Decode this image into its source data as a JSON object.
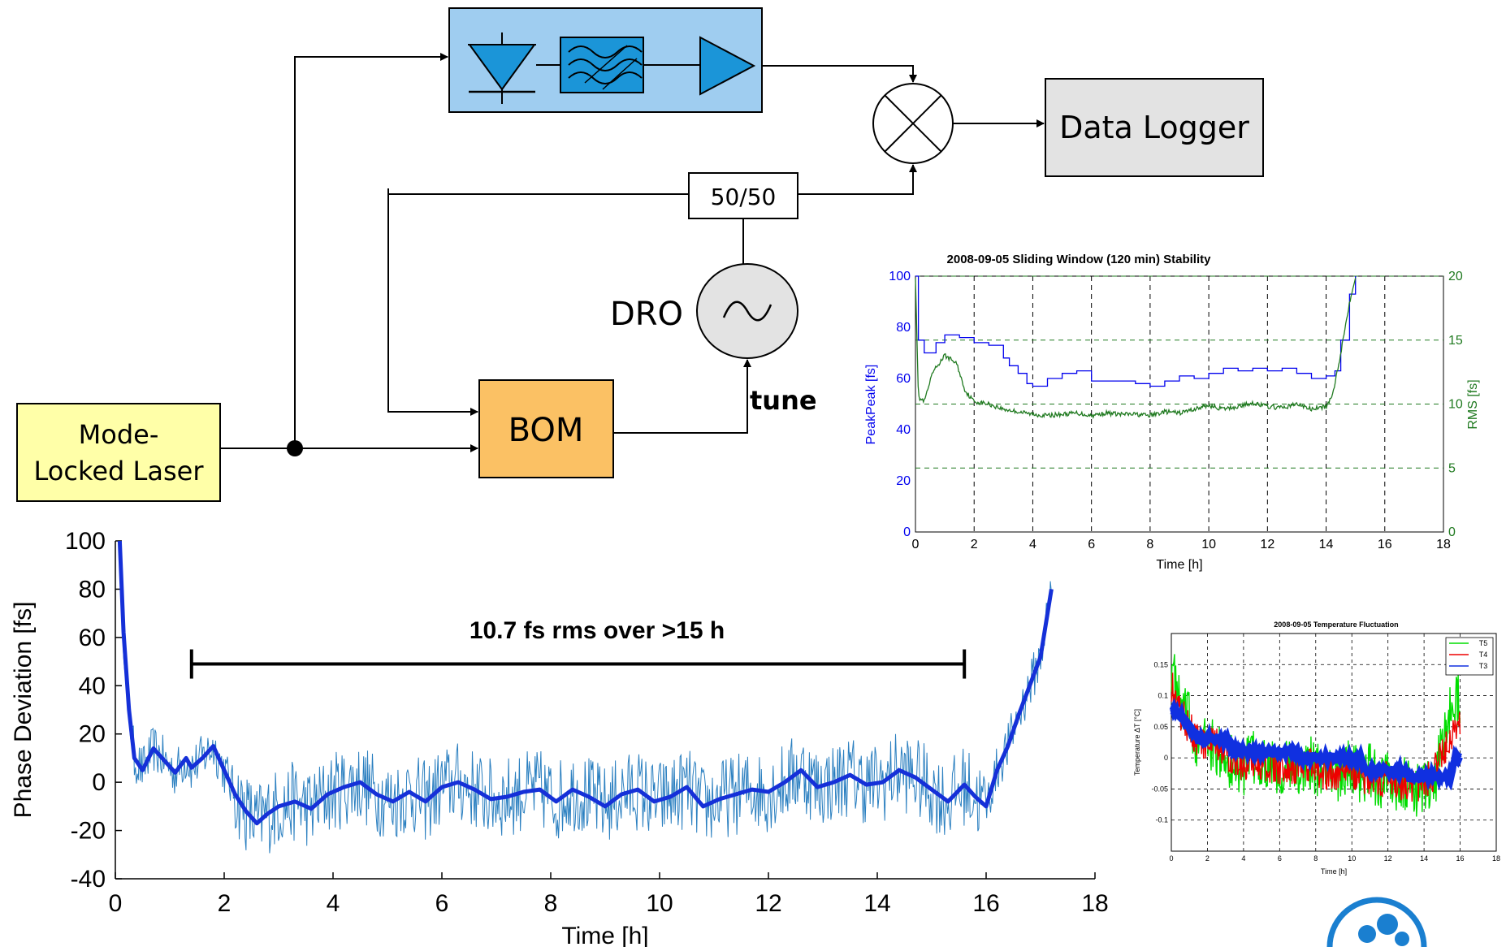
{
  "diagram": {
    "laser_label_1": "Mode-",
    "laser_label_2": "Locked Laser",
    "bom_label": "BOM",
    "splitter_label": "50/50",
    "dro_label": "DRO",
    "tune_label": "tune",
    "logger_label": "Data Logger"
  },
  "chart_data": [
    {
      "id": "main",
      "type": "line",
      "xlabel": "Time [h]",
      "ylabel": "Phase Deviation [fs]",
      "xlim": [
        0,
        18
      ],
      "ylim": [
        -40,
        100
      ],
      "xticks": [
        0,
        2,
        4,
        6,
        8,
        10,
        12,
        14,
        16,
        18
      ],
      "yticks": [
        -40,
        -20,
        0,
        20,
        40,
        60,
        80,
        100
      ],
      "annotation": "10.7 fs rms over >15 h",
      "annotation_range": [
        1.4,
        15.6
      ],
      "colors": {
        "raw": "#2a7fc0",
        "smooth": "#1530d8"
      },
      "series": [
        {
          "x": [
            0.08,
            0.15,
            0.25,
            0.35,
            0.5,
            0.7,
            0.9,
            1.1,
            1.3,
            1.4,
            1.6,
            1.8,
            2.0,
            2.2,
            2.4,
            2.6,
            2.8,
            3.0,
            3.3,
            3.6,
            3.9,
            4.2,
            4.5,
            4.8,
            5.1,
            5.4,
            5.7,
            6.0,
            6.3,
            6.6,
            6.9,
            7.2,
            7.5,
            7.8,
            8.1,
            8.4,
            8.7,
            9.0,
            9.3,
            9.6,
            9.9,
            10.2,
            10.5,
            10.8,
            11.1,
            11.4,
            11.7,
            12.0,
            12.3,
            12.6,
            12.9,
            13.2,
            13.5,
            13.8,
            14.1,
            14.4,
            14.7,
            15.0,
            15.3,
            15.6,
            15.8,
            16.0,
            16.2,
            16.4,
            16.6,
            16.8,
            17.0,
            17.2
          ],
          "y": [
            100,
            62,
            30,
            10,
            5,
            14,
            9,
            4,
            10,
            6,
            10,
            15,
            5,
            -5,
            -12,
            -17,
            -13,
            -10,
            -8,
            -11,
            -5,
            -2,
            0,
            -5,
            -8,
            -4,
            -8,
            -2,
            0,
            -3,
            -7,
            -6,
            -4,
            -3,
            -8,
            -3,
            -6,
            -10,
            -5,
            -3,
            -8,
            -6,
            -2,
            -10,
            -7,
            -5,
            -3,
            -4,
            0,
            5,
            -2,
            0,
            3,
            -1,
            0,
            5,
            2,
            -3,
            -8,
            -1,
            -6,
            -10,
            5,
            15,
            28,
            40,
            52,
            80
          ]
        }
      ]
    },
    {
      "id": "stability",
      "type": "line",
      "title": "2008-09-05 Sliding Window (120 min) Stability",
      "xlabel": "Time [h]",
      "ylabel": "PeakPeak [fs]",
      "ylabel2": "RMS [fs]",
      "xlim": [
        0,
        18
      ],
      "ylim": [
        0,
        100
      ],
      "ylim2": [
        0,
        20
      ],
      "xticks": [
        0,
        2,
        4,
        6,
        8,
        10,
        12,
        14,
        16,
        18
      ],
      "yticks": [
        0,
        20,
        40,
        60,
        80,
        100
      ],
      "yticks2": [
        0,
        5,
        10,
        15,
        20
      ],
      "grid": true,
      "series": [
        {
          "axis": "left",
          "color": "#0000ee",
          "x": [
            0.0,
            0.1,
            0.3,
            0.7,
            1.0,
            1.5,
            2.0,
            2.5,
            3.0,
            3.2,
            3.5,
            3.8,
            4.0,
            4.5,
            5.0,
            5.5,
            6.0,
            6.5,
            7.0,
            7.5,
            8.0,
            8.5,
            9.0,
            9.5,
            10.0,
            10.5,
            11.0,
            11.5,
            12.0,
            12.5,
            13.0,
            13.5,
            14.0,
            14.3,
            14.5,
            14.8,
            15.0
          ],
          "y": [
            100,
            75,
            70,
            74,
            77,
            76,
            74,
            73,
            68,
            65,
            62,
            58,
            57,
            60,
            62,
            63,
            59,
            59,
            59,
            58,
            57,
            59,
            61,
            60,
            62,
            64,
            63,
            64,
            63,
            64,
            62,
            60,
            61,
            63,
            75,
            93,
            100
          ]
        },
        {
          "axis": "right",
          "color": "#207a20",
          "x": [
            0.0,
            0.1,
            0.3,
            0.6,
            1.0,
            1.4,
            1.7,
            2.0,
            2.5,
            3.0,
            3.5,
            4.0,
            4.5,
            5.0,
            5.5,
            6.0,
            6.5,
            7.0,
            7.5,
            8.0,
            8.5,
            9.0,
            9.5,
            10.0,
            10.5,
            11.0,
            11.5,
            12.0,
            12.5,
            13.0,
            13.5,
            14.0,
            14.2,
            14.5,
            14.8,
            15.0
          ],
          "y": [
            20,
            10.5,
            10.2,
            12.5,
            13.8,
            13.2,
            11.0,
            10.2,
            10.0,
            9.6,
            9.4,
            9.2,
            9.1,
            9.2,
            9.3,
            9.1,
            9.3,
            9.2,
            9.2,
            9.1,
            9.4,
            9.3,
            9.6,
            9.9,
            9.6,
            9.8,
            10.1,
            9.8,
            9.7,
            10.0,
            9.6,
            9.8,
            10.5,
            14.0,
            18.0,
            20
          ]
        }
      ]
    },
    {
      "id": "temperature",
      "type": "line",
      "title": "2008-09-05 Temperature Fluctuation",
      "xlabel": "Time [h]",
      "ylabel": "Temperature ΔT [°C]",
      "xlim": [
        0,
        18
      ],
      "ylim": [
        -0.15,
        0.2
      ],
      "xticks": [
        0,
        2,
        4,
        6,
        8,
        10,
        12,
        14,
        16,
        18
      ],
      "yticks": [
        -0.1,
        -0.05,
        0,
        0.05,
        0.1,
        0.15
      ],
      "ytick_labels": [
        "-0.1",
        "-0.05",
        "0",
        "0.05",
        "0.1",
        "0.15"
      ],
      "grid": true,
      "legend": "top-right",
      "series": [
        {
          "name": "T5",
          "color": "#00dd00",
          "x": [
            0,
            0.5,
            1,
            1.5,
            2,
            2.5,
            3,
            3.5,
            4,
            4.5,
            5,
            5.5,
            6,
            6.5,
            7,
            7.5,
            8,
            8.5,
            9,
            9.5,
            10,
            10.5,
            11,
            11.5,
            12,
            12.5,
            13,
            13.5,
            14,
            14.5,
            15,
            15.5,
            16
          ],
          "y": [
            0.15,
            0.08,
            0.06,
            0.02,
            0.03,
            0.01,
            0.0,
            -0.01,
            -0.02,
            0.0,
            -0.01,
            0.0,
            -0.02,
            -0.01,
            -0.03,
            0.0,
            -0.02,
            -0.01,
            -0.03,
            -0.02,
            -0.01,
            -0.03,
            -0.02,
            -0.04,
            -0.03,
            -0.05,
            -0.04,
            -0.06,
            -0.04,
            -0.05,
            0.02,
            0.08,
            0.1
          ]
        },
        {
          "name": "T4",
          "color": "#ee0000",
          "x": [
            0,
            0.5,
            1,
            1.5,
            2,
            2.5,
            3,
            3.5,
            4,
            4.5,
            5,
            5.5,
            6,
            6.5,
            7,
            7.5,
            8,
            8.5,
            9,
            9.5,
            10,
            10.5,
            11,
            11.5,
            12,
            12.5,
            13,
            13.5,
            14,
            14.5,
            15,
            15.5,
            16
          ],
          "y": [
            0.12,
            0.07,
            0.05,
            0.03,
            0.02,
            0.02,
            0.01,
            0.0,
            -0.01,
            0.0,
            -0.01,
            -0.01,
            -0.02,
            -0.01,
            -0.02,
            -0.01,
            -0.02,
            -0.02,
            -0.03,
            -0.02,
            -0.02,
            -0.03,
            -0.03,
            -0.04,
            -0.03,
            -0.04,
            -0.05,
            -0.05,
            -0.04,
            -0.03,
            0.01,
            0.04,
            0.06
          ]
        },
        {
          "name": "T3",
          "color": "#1030e0",
          "x": [
            0,
            0.5,
            1,
            1.3,
            1.5,
            3.2,
            3.4,
            7.0,
            7.2,
            10.5,
            10.7,
            13.0,
            13.2,
            15.5,
            15.7,
            16.0
          ],
          "y": [
            0.08,
            0.07,
            0.05,
            0.04,
            0.03,
            0.03,
            0.01,
            0.01,
            0.0,
            0.0,
            -0.02,
            -0.02,
            -0.03,
            -0.03,
            0.0,
            0.0
          ]
        }
      ]
    }
  ]
}
